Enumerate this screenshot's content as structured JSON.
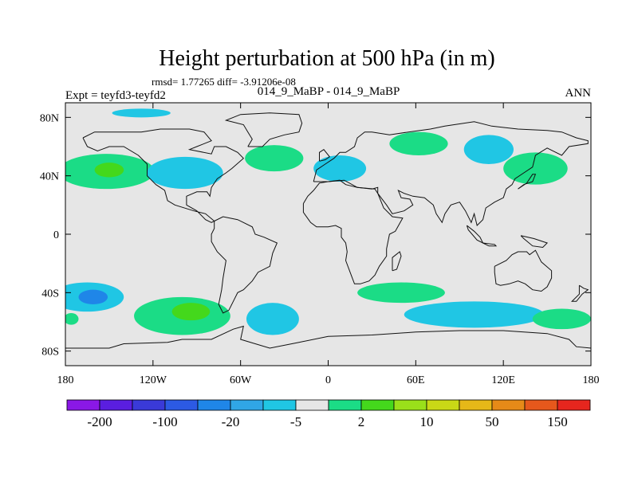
{
  "chart_data": {
    "type": "contour-map",
    "title": "Height perturbation at 500 hPa (in m)",
    "stats_line": "rmsd= 1.77265 diff= -3.91206e-08",
    "left_label": "Expt = teyfd3-teyfd2",
    "center_label": "014_9_MaBP - 014_9_MaBP",
    "right_label": "ANN",
    "x_ticks": [
      "180",
      "120W",
      "60W",
      "0",
      "60E",
      "120E",
      "180"
    ],
    "x_values": [
      -180,
      -120,
      -60,
      0,
      60,
      120,
      180
    ],
    "y_ticks": [
      "80N",
      "40N",
      "0",
      "40S",
      "80S"
    ],
    "y_values": [
      80,
      40,
      0,
      -40,
      -80
    ],
    "xlim": [
      -180,
      180
    ],
    "ylim": [
      -90,
      90
    ],
    "colorbar": {
      "colors": [
        "#8a18e6",
        "#5a1ee0",
        "#3a3ad8",
        "#2c5ae4",
        "#1f86e8",
        "#30a6e6",
        "#20c6e4",
        "#e6e6e6",
        "#1bdc86",
        "#44d81c",
        "#9ae01a",
        "#c9d816",
        "#e6b818",
        "#e68a18",
        "#e6581c",
        "#e6261e"
      ],
      "labels": [
        "-200",
        "-100",
        "-20",
        "-5",
        "2",
        "10",
        "50",
        "150"
      ],
      "label_after_box": [
        1,
        3,
        5,
        7,
        9,
        11,
        13,
        15
      ]
    },
    "regions": [
      {
        "name": "n-pacific-positive",
        "lon": -152,
        "lat": 43,
        "rx": 33,
        "ry": 12,
        "color": "#1bdc86"
      },
      {
        "name": "n-pacific-core",
        "lon": -150,
        "lat": 44,
        "rx": 10,
        "ry": 5,
        "color": "#44d81c"
      },
      {
        "name": "n-america-negative",
        "lon": -98,
        "lat": 42,
        "rx": 26,
        "ry": 11,
        "color": "#20c6e4"
      },
      {
        "name": "n-atlantic-positive",
        "lon": -37,
        "lat": 52,
        "rx": 20,
        "ry": 9,
        "color": "#1bdc86"
      },
      {
        "name": "europe-negative",
        "lon": 8,
        "lat": 45,
        "rx": 18,
        "ry": 9,
        "color": "#20c6e4"
      },
      {
        "name": "siberia-positive",
        "lon": 62,
        "lat": 62,
        "rx": 20,
        "ry": 8,
        "color": "#1bdc86"
      },
      {
        "name": "e-asia-negative",
        "lon": 110,
        "lat": 58,
        "rx": 17,
        "ry": 10,
        "color": "#20c6e4"
      },
      {
        "name": "nw-pacific-positive",
        "lon": 142,
        "lat": 45,
        "rx": 22,
        "ry": 11,
        "color": "#1bdc86"
      },
      {
        "name": "arctic-negative",
        "lon": -128,
        "lat": 83,
        "rx": 20,
        "ry": 3,
        "color": "#20c6e4"
      },
      {
        "name": "sw-pacific-negative",
        "lon": -165,
        "lat": -43,
        "rx": 25,
        "ry": 10,
        "color": "#20c6e4"
      },
      {
        "name": "sw-pacific-core",
        "lon": -161,
        "lat": -43,
        "rx": 10,
        "ry": 5,
        "color": "#1f86e8"
      },
      {
        "name": "s-pacific-positive",
        "lon": -100,
        "lat": -56,
        "rx": 33,
        "ry": 13,
        "color": "#1bdc86"
      },
      {
        "name": "s-pacific-core",
        "lon": -94,
        "lat": -53,
        "rx": 13,
        "ry": 6,
        "color": "#44d81c"
      },
      {
        "name": "s-atlantic-negative",
        "lon": -38,
        "lat": -58,
        "rx": 18,
        "ry": 11,
        "color": "#20c6e4"
      },
      {
        "name": "s-indian-positive",
        "lon": 50,
        "lat": -40,
        "rx": 30,
        "ry": 7,
        "color": "#1bdc86"
      },
      {
        "name": "s-ocean-negative",
        "lon": 100,
        "lat": -55,
        "rx": 48,
        "ry": 9,
        "color": "#20c6e4"
      },
      {
        "name": "se-pacific-positive",
        "lon": 160,
        "lat": -58,
        "rx": 20,
        "ry": 7,
        "color": "#1bdc86"
      },
      {
        "name": "e-pacific-east-positive",
        "lon": -176,
        "lat": -58,
        "rx": 5,
        "ry": 4,
        "color": "#1bdc86"
      }
    ]
  }
}
